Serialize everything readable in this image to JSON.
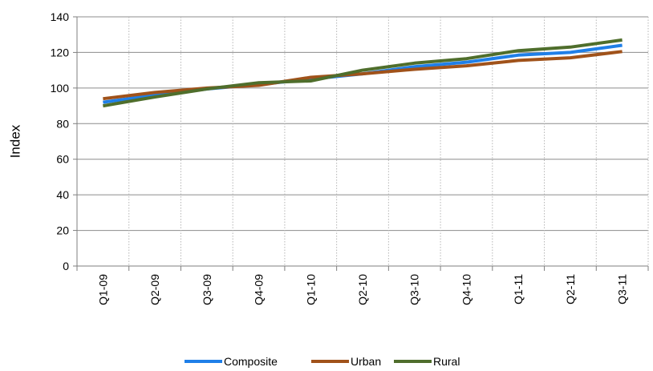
{
  "chart_data": {
    "type": "line",
    "categories": [
      "Q1-09",
      "Q2-09",
      "Q3-09",
      "Q4-09",
      "Q1-10",
      "Q2-10",
      "Q3-10",
      "Q4-10",
      "Q1-11",
      "Q2-11",
      "Q3-11"
    ],
    "ylabel": "Index",
    "ylim": [
      0,
      140
    ],
    "yticks": [
      0,
      20,
      40,
      60,
      80,
      100,
      120,
      140
    ],
    "grid": {
      "horizontal": true,
      "vertical": true
    },
    "legend": "bottom",
    "series": [
      {
        "name": "Composite",
        "color": "#1F7FE8",
        "values": [
          92,
          96,
          99.5,
          102,
          105,
          108,
          112,
          114.5,
          118.5,
          120,
          124
        ]
      },
      {
        "name": "Urban",
        "color": "#A0521A",
        "values": [
          94,
          97.5,
          100,
          101.5,
          106,
          108,
          110.5,
          112.5,
          115.5,
          117,
          120.5
        ]
      },
      {
        "name": "Rural",
        "color": "#4F6E2C",
        "values": [
          90,
          95,
          99.5,
          103,
          104,
          110,
          114,
          116.5,
          121,
          123,
          127
        ]
      }
    ]
  }
}
